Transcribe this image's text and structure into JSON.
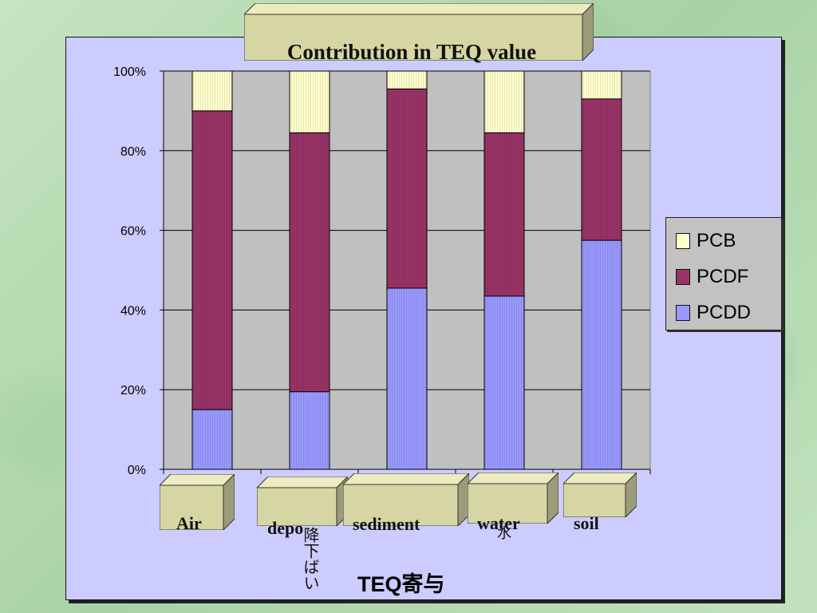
{
  "chart_data": {
    "type": "bar",
    "stacked": true,
    "percent": true,
    "title": "Contribution in TEQ value",
    "xlabel": "TEQ寄与",
    "categories": [
      "Air",
      "depo",
      "sediment",
      "water",
      "soil"
    ],
    "category_subtext": [
      "",
      "降下ばい",
      "",
      "水",
      ""
    ],
    "y_ticks": [
      "0%",
      "20%",
      "40%",
      "60%",
      "80%",
      "100%"
    ],
    "ylim": [
      0,
      100
    ],
    "series": [
      {
        "name": "PCDD",
        "values": [
          15,
          19.5,
          45.5,
          43.5,
          57.5
        ],
        "color": "#9999ff"
      },
      {
        "name": "PCDF",
        "values": [
          75,
          65,
          50,
          41,
          35.5
        ],
        "color": "#993366"
      },
      {
        "name": "PCB",
        "values": [
          10,
          15.5,
          4.5,
          15.5,
          7
        ],
        "color": "#ffffcc"
      }
    ],
    "legend": {
      "placement": "right",
      "order": [
        "PCB",
        "PCDF",
        "PCDD"
      ]
    },
    "grid": true
  }
}
